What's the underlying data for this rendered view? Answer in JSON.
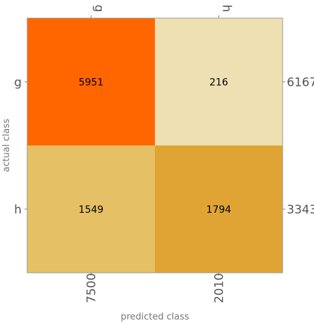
{
  "chart_data": {
    "type": "heatmap",
    "xlabel": "predicted class",
    "ylabel": "actual class",
    "col_labels_top": [
      "g",
      "h"
    ],
    "row_labels": [
      "g",
      "h"
    ],
    "matrix": [
      [
        5951,
        216
      ],
      [
        1549,
        1794
      ]
    ],
    "row_totals": [
      6167,
      3343
    ],
    "col_totals": [
      7500,
      2010
    ],
    "colors": {
      "g-g": "#ff6600",
      "g-h": "#efe0b4",
      "h-g": "#e5c064",
      "h-h": "#e0a434",
      "frame": "#9a9a9a"
    }
  }
}
